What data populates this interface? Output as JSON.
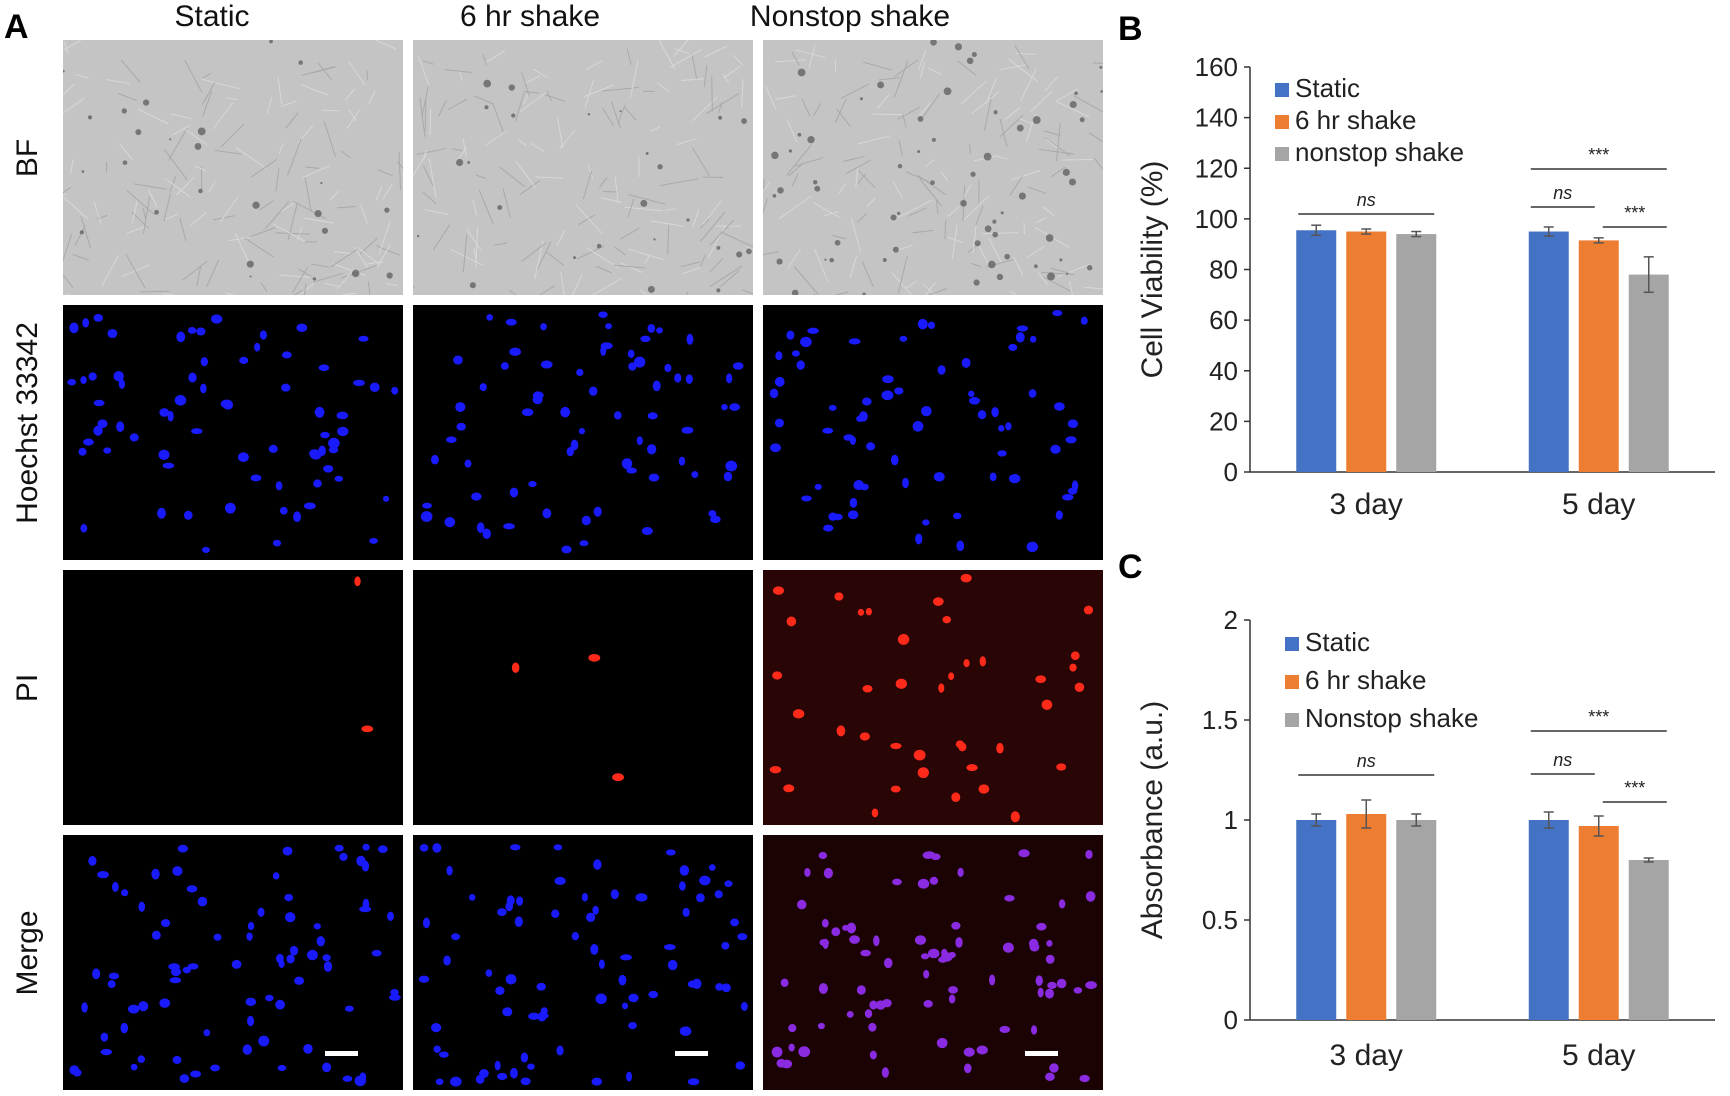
{
  "panelA": {
    "label": "A",
    "columns": [
      "Static",
      "6 hr shake",
      "Nonstop shake"
    ],
    "rows": [
      "BF",
      "Hoechst 33342",
      "PI",
      "Merge"
    ]
  },
  "panelB": {
    "label": "B"
  },
  "panelC": {
    "label": "C"
  },
  "colors": {
    "static": "#4472C4",
    "six_hr": "#ED7D31",
    "nonstop": "#A5A5A5",
    "hoechst": "#1a1aff",
    "pi": "#ff2a1a"
  },
  "chart_data": [
    {
      "panel": "B",
      "type": "bar",
      "categories": [
        "3 day",
        "5 day"
      ],
      "series": [
        {
          "name": "Static",
          "values": [
            95.5,
            95
          ],
          "errors": [
            2,
            1.8
          ]
        },
        {
          "name": "6 hr shake",
          "values": [
            95,
            91.5
          ],
          "errors": [
            1,
            1
          ]
        },
        {
          "name": "nonstop shake",
          "values": [
            94,
            78
          ],
          "errors": [
            1,
            7
          ]
        }
      ],
      "ylabel": "Cell Viability (%)",
      "ylim": [
        0,
        160
      ],
      "yticks": [
        "0",
        "20",
        "40",
        "60",
        "80",
        "100",
        "120",
        "140",
        "160"
      ],
      "legend": "top-left",
      "grid": false,
      "annotations": [
        "ns",
        "***",
        "ns",
        "***"
      ]
    },
    {
      "panel": "C",
      "type": "bar",
      "categories": [
        "3 day",
        "5 day"
      ],
      "series": [
        {
          "name": "Static",
          "values": [
            1.0,
            1.0
          ],
          "errors": [
            0.03,
            0.04
          ]
        },
        {
          "name": "6 hr shake",
          "values": [
            1.03,
            0.97
          ],
          "errors": [
            0.07,
            0.05
          ]
        },
        {
          "name": "Nonstop shake",
          "values": [
            1.0,
            0.8
          ],
          "errors": [
            0.03,
            0.01
          ]
        }
      ],
      "ylabel": "Absorbance (a.u.)",
      "ylim": [
        0,
        2
      ],
      "yticks": [
        "0",
        "0.5",
        "1",
        "1.5",
        "2"
      ],
      "legend": "top-left",
      "grid": false,
      "annotations": [
        "ns",
        "***",
        "ns",
        "***"
      ]
    }
  ]
}
